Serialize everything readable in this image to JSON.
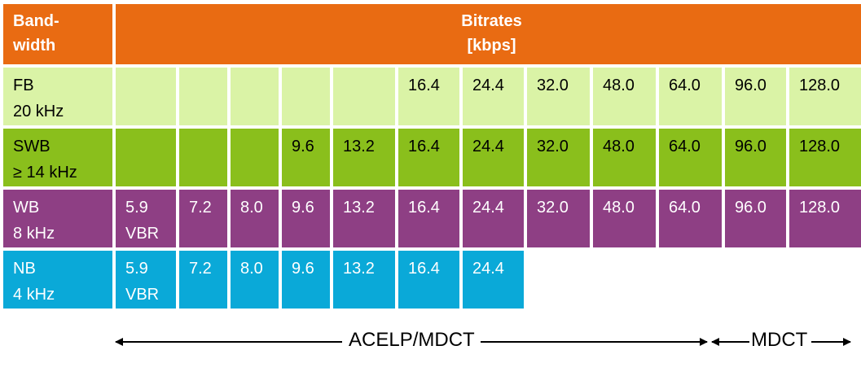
{
  "header": {
    "bandwidth_label_line1": "Band-",
    "bandwidth_label_line2": "width",
    "bitrates_line1": "Bitrates",
    "bitrates_line2": "[kbps]"
  },
  "rows": [
    {
      "id": "fb",
      "label_line1": "FB",
      "label_line2": "20 kHz",
      "color": "#daf3a6",
      "cells": [
        "",
        "",
        "",
        "",
        "",
        "16.4",
        "24.4",
        "32.0",
        "48.0",
        "64.0",
        "96.0",
        "128.0"
      ]
    },
    {
      "id": "swb",
      "label_line1": "SWB",
      "label_line2": "≥ 14 kHz",
      "color": "#8abf1c",
      "cells": [
        "",
        "",
        "",
        "9.6",
        "13.2",
        "16.4",
        "24.4",
        "32.0",
        "48.0",
        "64.0",
        "96.0",
        "128.0"
      ]
    },
    {
      "id": "wb",
      "label_line1": "WB",
      "label_line2": "8 kHz",
      "color": "#8e3f84",
      "cells": [
        "5.9\nVBR",
        "7.2",
        "8.0",
        "9.6",
        "13.2",
        "16.4",
        "24.4",
        "32.0",
        "48.0",
        "64.0",
        "96.0",
        "128.0"
      ]
    },
    {
      "id": "nb",
      "label_line1": "NB",
      "label_line2": "4 kHz",
      "color": "#0aa9d8",
      "cells": [
        "5.9\nVBR",
        "7.2",
        "8.0",
        "9.6",
        "13.2",
        "16.4",
        "24.4",
        null,
        null,
        null,
        null,
        null
      ]
    }
  ],
  "codec_ranges": {
    "acelp_mdct_label": "ACELP/MDCT",
    "mdct_label": "MDCT"
  },
  "colors": {
    "header": "#e96b12",
    "fb": "#daf3a6",
    "swb": "#8abf1c",
    "wb": "#8e3f84",
    "nb": "#0aa9d8"
  }
}
